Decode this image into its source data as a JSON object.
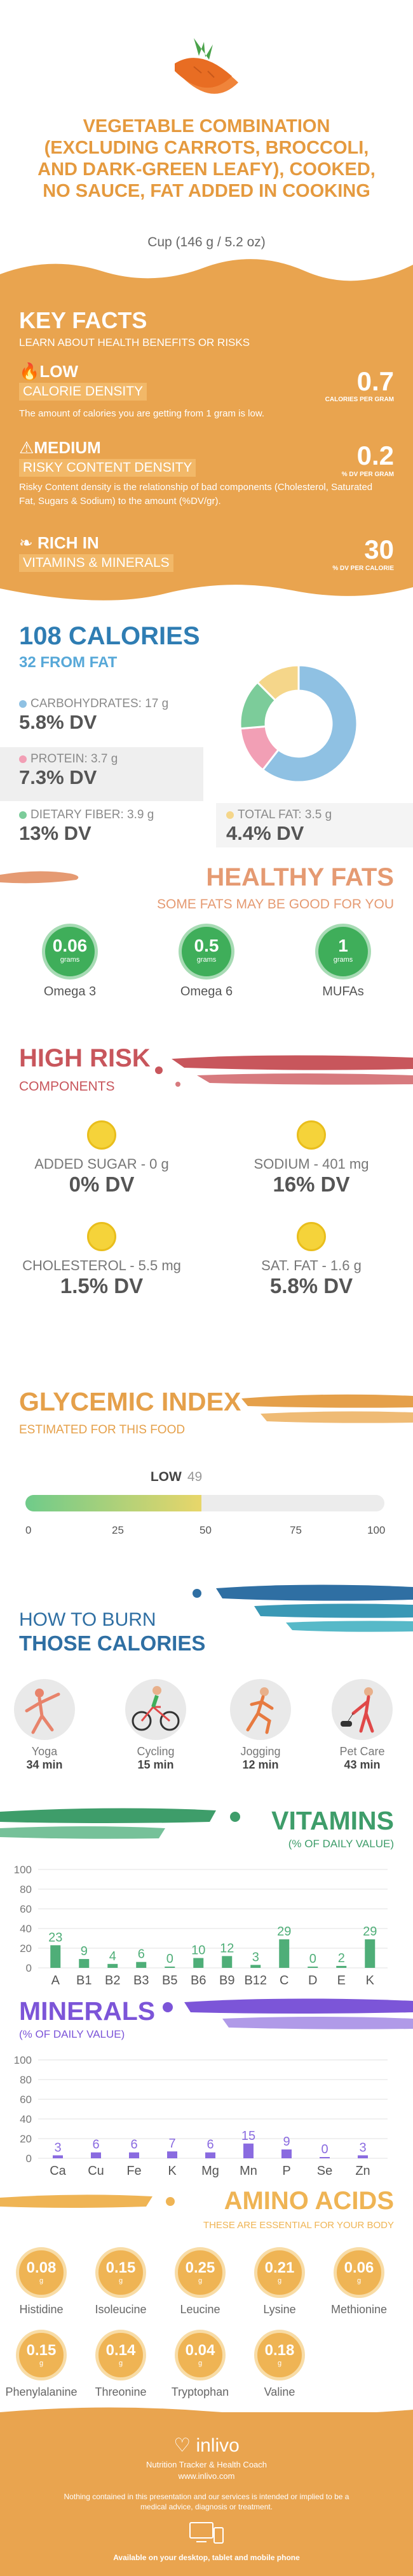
{
  "header": {
    "title": "VEGETABLE COMBINATION (EXCLUDING CARROTS, BROCCOLI, AND DARK-GREEN LEAFY), COOKED, NO SAUCE, FAT ADDED IN COOKING",
    "serving": "Cup (146 g / 5.2 oz)"
  },
  "key_facts": {
    "title": "KEY FACTS",
    "subtitle": "LEARN ABOUT HEALTH BENEFITS OR RISKS",
    "items": [
      {
        "level": "LOW",
        "band": "CALORIE DENSITY",
        "desc": "The amount of calories you are getting from 1 gram is low.",
        "value": "0.7",
        "unit": "CALORIES PER GRAM"
      },
      {
        "level": "MEDIUM",
        "band": "RISKY CONTENT DENSITY",
        "desc": "Risky Content density is the relationship of bad components (Cholesterol, Saturated Fat, Sugars & Sodium) to the amount (%DV/gr).",
        "value": "0.2",
        "unit": "% DV PER GRAM"
      },
      {
        "level": "RICH IN",
        "band": "VITAMINS & MINERALS",
        "desc": "",
        "value": "30",
        "unit": "% DV PER CALORIE"
      }
    ]
  },
  "calories": {
    "title": "108 CALORIES",
    "subtitle": "32 FROM FAT",
    "macros": [
      {
        "label": "CARBOHYDRATES: 17 g",
        "dv": "5.8% DV",
        "color": "#8fc1e3"
      },
      {
        "label": "PROTEIN: 3.7 g",
        "dv": "7.3% DV",
        "color": "#f29fb5"
      },
      {
        "label": "DIETARY FIBER: 3.9 g",
        "dv": "13% DV",
        "color": "#7ccc9a"
      },
      {
        "label": "TOTAL FAT: 3.5 g",
        "dv": "4.4% DV",
        "color": "#f5d68a"
      }
    ],
    "donut": [
      {
        "name": "carbohydrates",
        "value": 17,
        "color": "#8fc1e3"
      },
      {
        "name": "protein",
        "value": 3.7,
        "color": "#f29fb5"
      },
      {
        "name": "fiber",
        "value": 3.9,
        "color": "#7ccc9a"
      },
      {
        "name": "fat",
        "value": 3.5,
        "color": "#f5d68a"
      }
    ]
  },
  "healthy_fats": {
    "title": "HEALTHY FATS",
    "subtitle": "SOME FATS MAY BE GOOD FOR YOU",
    "items": [
      {
        "value": "0.06",
        "unit": "grams",
        "name": "Omega 3"
      },
      {
        "value": "0.5",
        "unit": "grams",
        "name": "Omega 6"
      },
      {
        "value": "1",
        "unit": "grams",
        "name": "MUFAs"
      }
    ]
  },
  "high_risk": {
    "title": "HIGH RISK",
    "subtitle": "COMPONENTS",
    "items": [
      {
        "label": "ADDED SUGAR - 0 g",
        "dv": "0% DV"
      },
      {
        "label": "SODIUM - 401 mg",
        "dv": "16% DV"
      },
      {
        "label": "CHOLESTEROL - 5.5 mg",
        "dv": "1.5% DV"
      },
      {
        "label": "SAT. FAT - 1.6 g",
        "dv": "5.8% DV"
      }
    ]
  },
  "glycemic": {
    "title": "GLYCEMIC INDEX",
    "subtitle": "ESTIMATED FOR THIS FOOD",
    "level": "LOW",
    "value": 49,
    "ticks": [
      "0",
      "25",
      "50",
      "75",
      "100"
    ]
  },
  "burn": {
    "title1": "HOW TO BURN",
    "title2": "THOSE CALORIES",
    "activities": [
      {
        "name": "Yoga",
        "minutes": "34 min",
        "icon": "yoga-icon"
      },
      {
        "name": "Cycling",
        "minutes": "15 min",
        "icon": "cycling-icon"
      },
      {
        "name": "Jogging",
        "minutes": "12 min",
        "icon": "jogging-icon"
      },
      {
        "name": "Pet Care",
        "minutes": "43 min",
        "icon": "pet-care-icon"
      }
    ]
  },
  "vitamins": {
    "title": "VITAMINS",
    "subtitle": "(% OF DAILY VALUE)",
    "chart_data": {
      "type": "bar",
      "categories": [
        "A",
        "B1",
        "B2",
        "B3",
        "B5",
        "B6",
        "B9",
        "B12",
        "C",
        "D",
        "E",
        "K"
      ],
      "values": [
        23,
        9,
        4,
        6,
        0,
        10,
        12,
        3,
        29,
        0,
        2,
        29
      ],
      "ylim": [
        0,
        100
      ],
      "yticks": [
        "0",
        "20",
        "40",
        "60",
        "80",
        "100"
      ],
      "color": "#4fae78",
      "grid": true
    }
  },
  "minerals": {
    "title": "MINERALS",
    "subtitle": "(% OF DAILY VALUE)",
    "chart_data": {
      "type": "bar",
      "categories": [
        "Ca",
        "Cu",
        "Fe",
        "K",
        "Mg",
        "Mn",
        "P",
        "Se",
        "Zn"
      ],
      "values": [
        3,
        6,
        6,
        7,
        6,
        15,
        9,
        0,
        3
      ],
      "ylim": [
        0,
        100
      ],
      "yticks": [
        "0",
        "20",
        "40",
        "60",
        "80",
        "100"
      ],
      "color": "#8a6be0",
      "grid": true
    }
  },
  "amino": {
    "title": "AMINO ACIDS",
    "subtitle": "THESE ARE ESSENTIAL FOR YOUR BODY",
    "items": [
      {
        "value": "0.08",
        "unit": "g",
        "name": "Histidine"
      },
      {
        "value": "0.15",
        "unit": "g",
        "name": "Isoleucine"
      },
      {
        "value": "0.25",
        "unit": "g",
        "name": "Leucine"
      },
      {
        "value": "0.21",
        "unit": "g",
        "name": "Lysine"
      },
      {
        "value": "0.06",
        "unit": "g",
        "name": "Methionine"
      },
      {
        "value": "0.15",
        "unit": "g",
        "name": "Phenylalanine"
      },
      {
        "value": "0.14",
        "unit": "g",
        "name": "Threonine"
      },
      {
        "value": "0.04",
        "unit": "g",
        "name": "Tryptophan"
      },
      {
        "value": "0.18",
        "unit": "g",
        "name": "Valine"
      }
    ]
  },
  "footer": {
    "logo": "inlivo",
    "tagline": "Nutrition Tracker & Health Coach",
    "url": "www.inlivo.com",
    "disclaimer": "Nothing contained in this presentation and our services is intended or implied to be a medical advice, diagnosis or treatment.",
    "available": "Available on your desktop, tablet and mobile phone"
  }
}
